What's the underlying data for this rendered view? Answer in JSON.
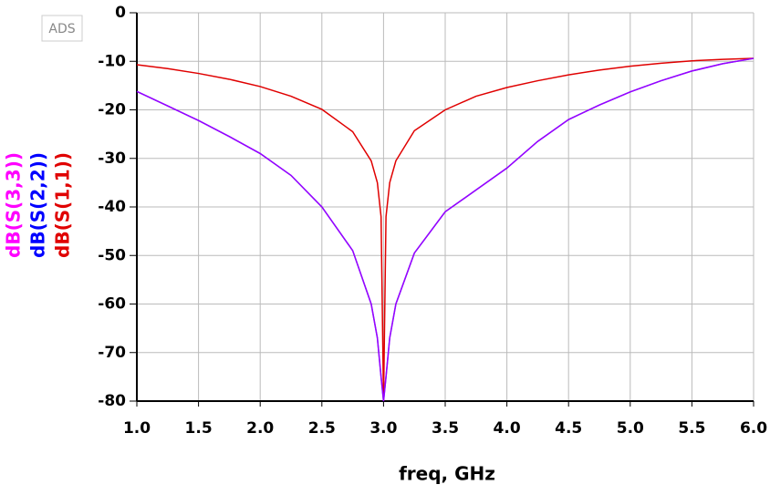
{
  "logo": "ADS",
  "chart_data": {
    "type": "line",
    "x_label": "freq, GHz",
    "x": [
      1.0,
      1.25,
      1.5,
      1.75,
      2.0,
      2.25,
      2.5,
      2.75,
      2.9,
      2.95,
      2.98,
      3.0,
      3.02,
      3.05,
      3.1,
      3.25,
      3.5,
      3.75,
      4.0,
      4.25,
      4.5,
      4.75,
      5.0,
      5.25,
      5.5,
      5.75,
      6.0
    ],
    "series": [
      {
        "name": "dB(S(3,3))",
        "color": "#ff00ff",
        "values": [
          -16.2,
          -19.2,
          -22.2,
          -25.5,
          -29,
          -33.5,
          -40,
          -49,
          -60,
          -67,
          -75,
          -80,
          -75,
          -67,
          -60,
          -49.5,
          -41,
          -36.5,
          -32,
          -26.5,
          -22,
          -19,
          -16.3,
          -14,
          -12,
          -10.5,
          -9.4
        ]
      },
      {
        "name": "dB(S(2,2))",
        "color": "#0000ff",
        "values": [
          -16.2,
          -19.2,
          -22.2,
          -25.5,
          -29,
          -33.5,
          -40,
          -49,
          -60,
          -67,
          -75,
          -80,
          -75,
          -67,
          -60,
          -49.5,
          -41,
          -36.5,
          -32,
          -26.5,
          -22,
          -19,
          -16.3,
          -14,
          -12,
          -10.5,
          -9.4
        ]
      },
      {
        "name": "dB(S(1,1))",
        "color": "#e00000",
        "values": [
          -10.7,
          -11.5,
          -12.5,
          -13.7,
          -15.2,
          -17.2,
          -19.9,
          -24.5,
          -30.5,
          -35,
          -42,
          -80,
          -42,
          -35,
          -30.5,
          -24.3,
          -20,
          -17.2,
          -15.4,
          -14,
          -12.8,
          -11.8,
          -11,
          -10.4,
          -9.9,
          -9.6,
          -9.4
        ]
      }
    ],
    "xlim": [
      1.0,
      6.0
    ],
    "xticks": [
      {
        "value": 1.0,
        "label": "1.0"
      },
      1.5,
      {
        "value": 2.0,
        "label": "2.0"
      },
      2.5,
      {
        "value": 3.0,
        "label": "3.0"
      },
      3.5,
      {
        "value": 4.0,
        "label": "4.0"
      },
      4.5,
      {
        "value": 5.0,
        "label": "5.0"
      },
      5.5,
      {
        "value": 6.0,
        "label": "6.0"
      }
    ],
    "ylim": [
      -80,
      0
    ],
    "yticks": [
      0,
      -10,
      -20,
      -30,
      -40,
      -50,
      -60,
      -70,
      -80
    ],
    "grid": true
  }
}
